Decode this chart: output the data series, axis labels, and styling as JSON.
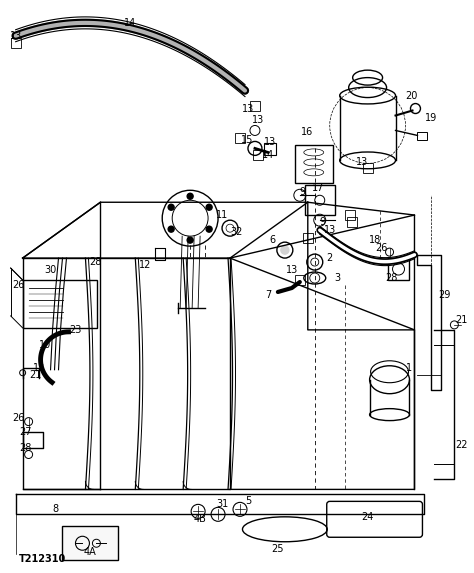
{
  "background_color": "#ffffff",
  "diagram_code": "T212310",
  "fig_width": 4.74,
  "fig_height": 5.73,
  "dpi": 100,
  "line_color": "#000000",
  "label_fontsize": 7,
  "line_width": 1.0
}
